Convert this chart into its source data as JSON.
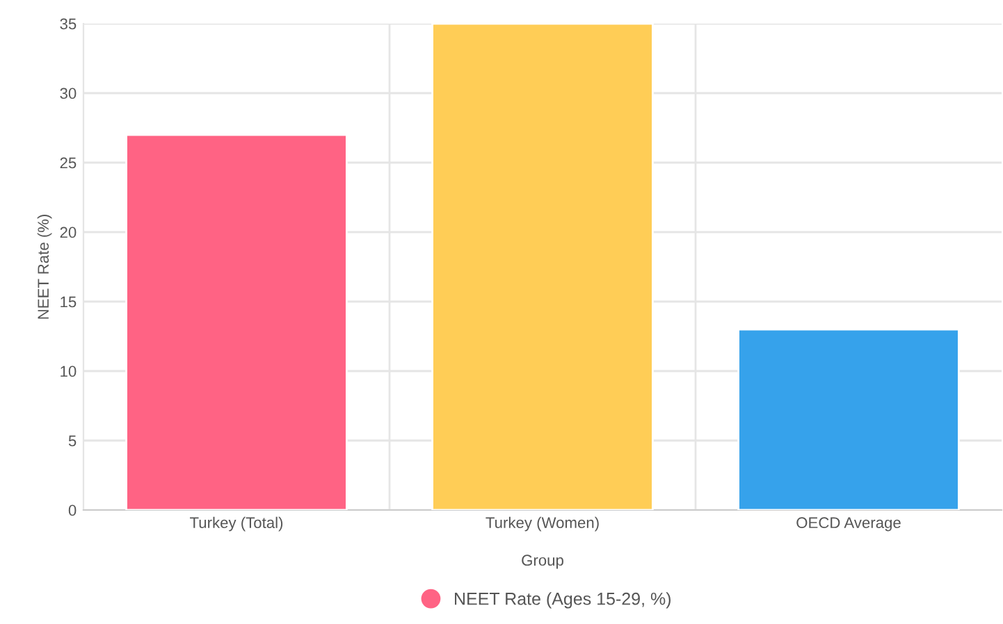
{
  "chart_data": {
    "type": "bar",
    "xlabel": "Group",
    "ylabel": "NEET Rate (%)",
    "categories": [
      "Turkey (Total)",
      "Turkey (Women)",
      "OECD Average"
    ],
    "series": [
      {
        "name": "NEET Rate (Ages 15-29, %)",
        "colors": [
          "#ff6384",
          "#ffcd56",
          "#36a2eb"
        ],
        "values": [
          27,
          35,
          13
        ]
      }
    ],
    "ylim": [
      0,
      35
    ],
    "yticks": [
      0,
      5,
      10,
      15,
      20,
      25,
      30,
      35
    ],
    "grid": true,
    "legend": "bottom"
  }
}
